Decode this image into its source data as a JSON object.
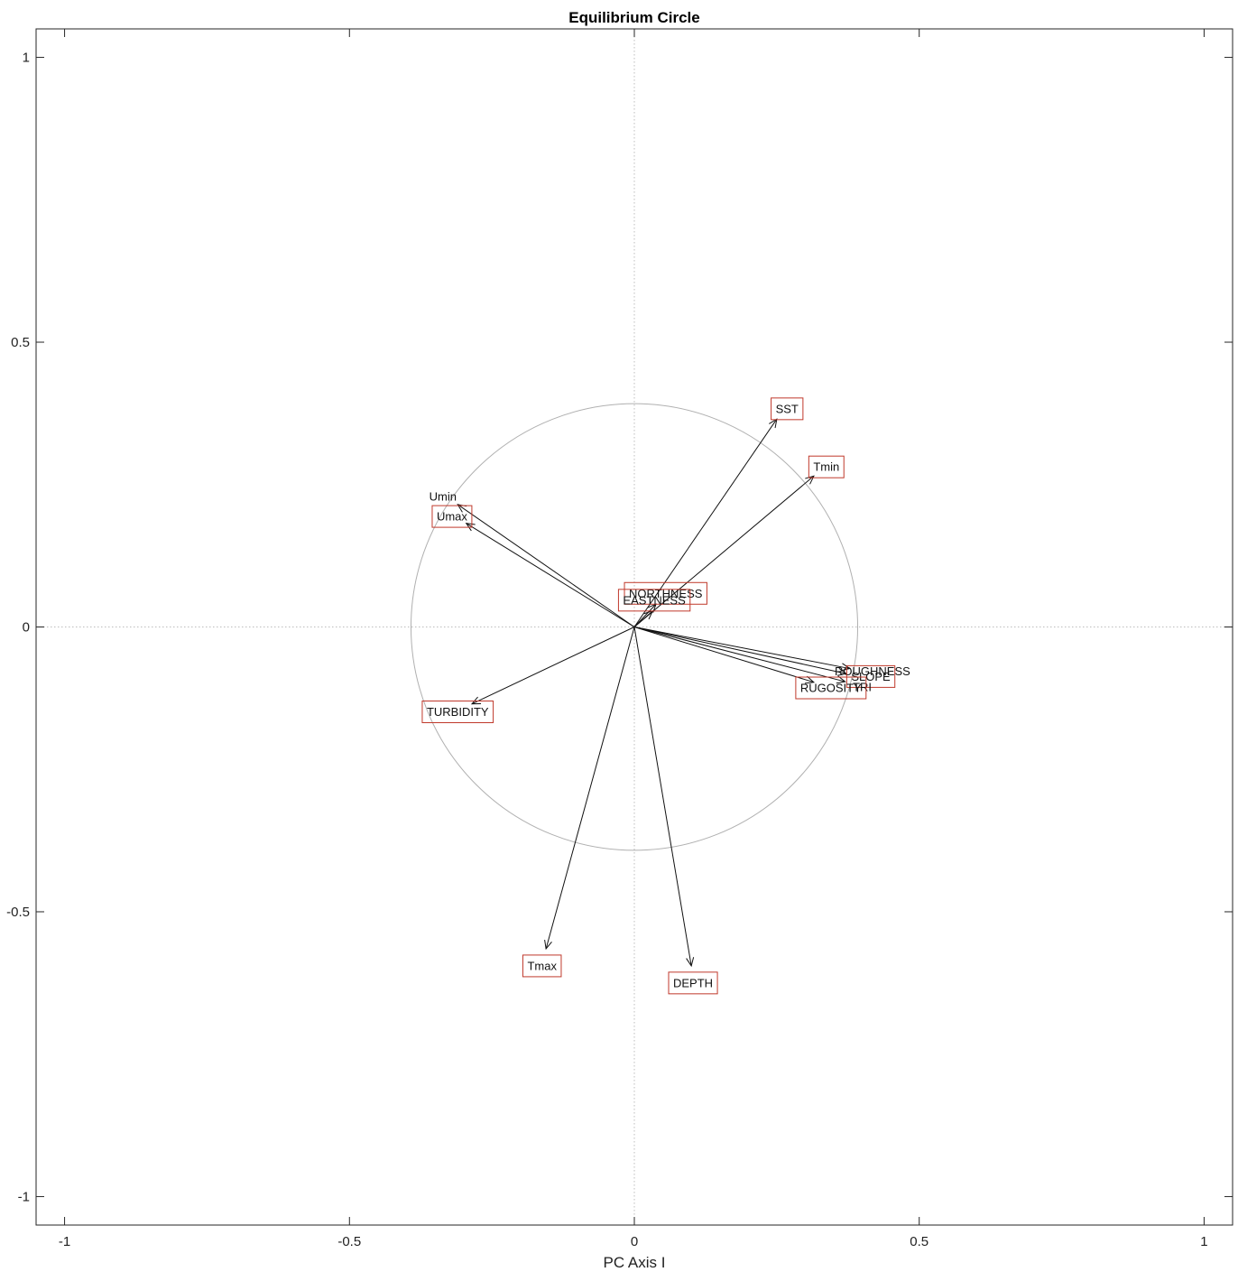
{
  "chart_data": {
    "type": "scatter",
    "title": "Equilibrium Circle",
    "xlabel": "PC Axis I",
    "ylabel": "",
    "xlim": [
      -1.05,
      1.05
    ],
    "ylim": [
      -1.05,
      1.05
    ],
    "xticks": [
      -1,
      -0.5,
      0,
      0.5,
      1
    ],
    "yticks": [
      -1,
      -0.5,
      0,
      0.5,
      1
    ],
    "xtick_labels": [
      "-1",
      "-0.5",
      "0",
      "0.5",
      "1"
    ],
    "ytick_labels": [
      "-1",
      "-0.5",
      "0",
      "0.5",
      "1"
    ],
    "equilibrium_radius": 0.392,
    "origin_lines": true,
    "colors": {
      "axes": "#262626",
      "arrow": "#111111",
      "label_box": "#c0392b",
      "circle": "#b0b0b0",
      "origin_line": "#bdbdbd"
    },
    "vectors": [
      {
        "name": "SST",
        "x": 0.25,
        "y": 0.365,
        "label_x": 0.268,
        "label_y": 0.383,
        "boxed": true
      },
      {
        "name": "Tmin",
        "x": 0.315,
        "y": 0.265,
        "label_x": 0.337,
        "label_y": 0.281,
        "boxed": true
      },
      {
        "name": "Umin",
        "x": -0.31,
        "y": 0.215,
        "label_x": -0.336,
        "label_y": 0.229,
        "boxed": false
      },
      {
        "name": "Umax",
        "x": -0.295,
        "y": 0.182,
        "label_x": -0.32,
        "label_y": 0.194,
        "boxed": true
      },
      {
        "name": "NORTHNESS",
        "x": 0.038,
        "y": 0.04,
        "label_x": 0.055,
        "label_y": 0.059,
        "boxed": true
      },
      {
        "name": "EASTNESS",
        "x": 0.032,
        "y": 0.028,
        "label_x": 0.035,
        "label_y": 0.047,
        "boxed": true
      },
      {
        "name": "ROUGHNESS",
        "x": 0.378,
        "y": -0.073,
        "label_x": 0.418,
        "label_y": -0.078,
        "boxed": false
      },
      {
        "name": "SLOPE",
        "x": 0.372,
        "y": -0.082,
        "label_x": 0.415,
        "label_y": -0.087,
        "boxed": true
      },
      {
        "name": "TRI",
        "x": 0.37,
        "y": -0.096,
        "label_x": 0.4,
        "label_y": -0.105,
        "boxed": false
      },
      {
        "name": "RUGOSITY",
        "x": 0.315,
        "y": -0.097,
        "label_x": 0.345,
        "label_y": -0.107,
        "boxed": true
      },
      {
        "name": "TURBIDITY",
        "x": -0.285,
        "y": -0.135,
        "label_x": -0.31,
        "label_y": -0.149,
        "boxed": true
      },
      {
        "name": "Tmax",
        "x": -0.155,
        "y": -0.565,
        "label_x": -0.162,
        "label_y": -0.595,
        "boxed": true
      },
      {
        "name": "DEPTH",
        "x": 0.1,
        "y": -0.595,
        "label_x": 0.103,
        "label_y": -0.625,
        "boxed": true
      }
    ]
  }
}
